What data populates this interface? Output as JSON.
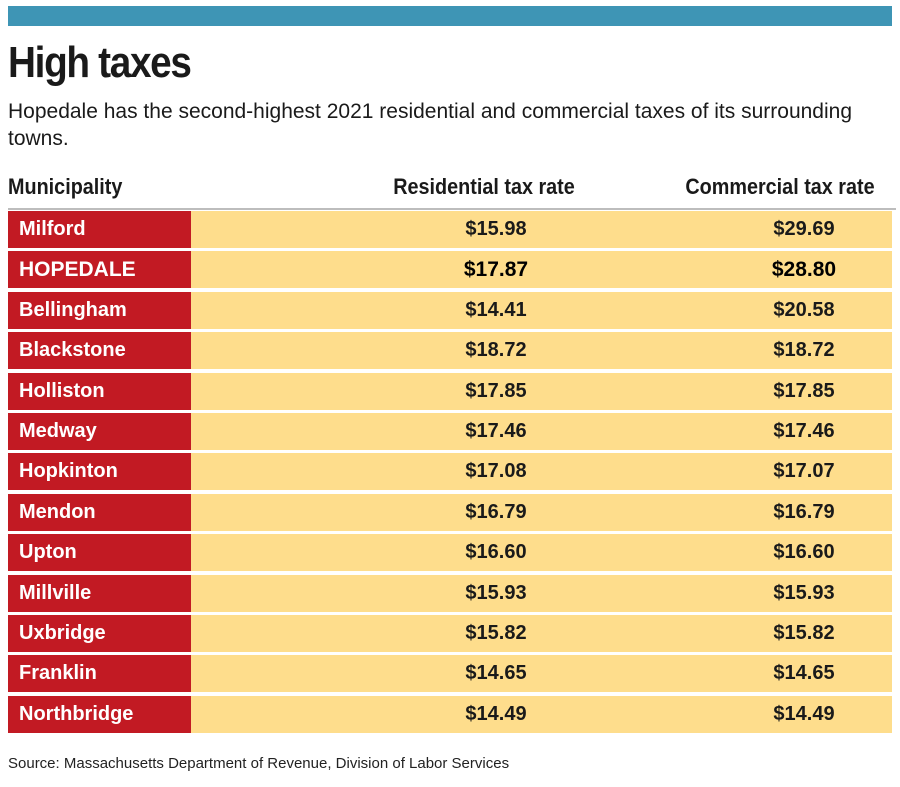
{
  "chart_data": {
    "type": "table",
    "title": "High taxes",
    "subtitle": "Hopedale has the second-highest 2021 residential and commercial taxes of its surrounding towns.",
    "columns": [
      "Municipality",
      "Residential tax rate",
      "Commercial tax rate"
    ],
    "rows": [
      {
        "name": "Milford",
        "residential": "$15.98",
        "commercial": "$29.69",
        "highlight": false
      },
      {
        "name": "HOPEDALE",
        "residential": "$17.87",
        "commercial": "$28.80",
        "highlight": true
      },
      {
        "name": "Bellingham",
        "residential": "$14.41",
        "commercial": "$20.58",
        "highlight": false
      },
      {
        "name": "Blackstone",
        "residential": "$18.72",
        "commercial": "$18.72",
        "highlight": false
      },
      {
        "name": "Holliston",
        "residential": "$17.85",
        "commercial": "$17.85",
        "highlight": false
      },
      {
        "name": "Medway",
        "residential": "$17.46",
        "commercial": "$17.46",
        "highlight": false
      },
      {
        "name": "Hopkinton",
        "residential": "$17.08",
        "commercial": "$17.07",
        "highlight": false
      },
      {
        "name": "Mendon",
        "residential": "$16.79",
        "commercial": "$16.79",
        "highlight": false
      },
      {
        "name": "Upton",
        "residential": "$16.60",
        "commercial": "$16.60",
        "highlight": false
      },
      {
        "name": "Millville",
        "residential": "$15.93",
        "commercial": "$15.93",
        "highlight": false
      },
      {
        "name": "Uxbridge",
        "residential": "$15.82",
        "commercial": "$15.82",
        "highlight": false
      },
      {
        "name": "Franklin",
        "residential": "$14.65",
        "commercial": "$14.65",
        "highlight": false
      },
      {
        "name": "Northbridge",
        "residential": "$14.49",
        "commercial": "$14.49",
        "highlight": false
      }
    ],
    "source": "Source: Massachusetts Department of Revenue, Division of Labor Services"
  },
  "colors": {
    "top_bar": "#3e95b5",
    "name_cell": "#c21a23",
    "value_cell": "#fedd8c",
    "header_rule": "#bdbdbd"
  }
}
